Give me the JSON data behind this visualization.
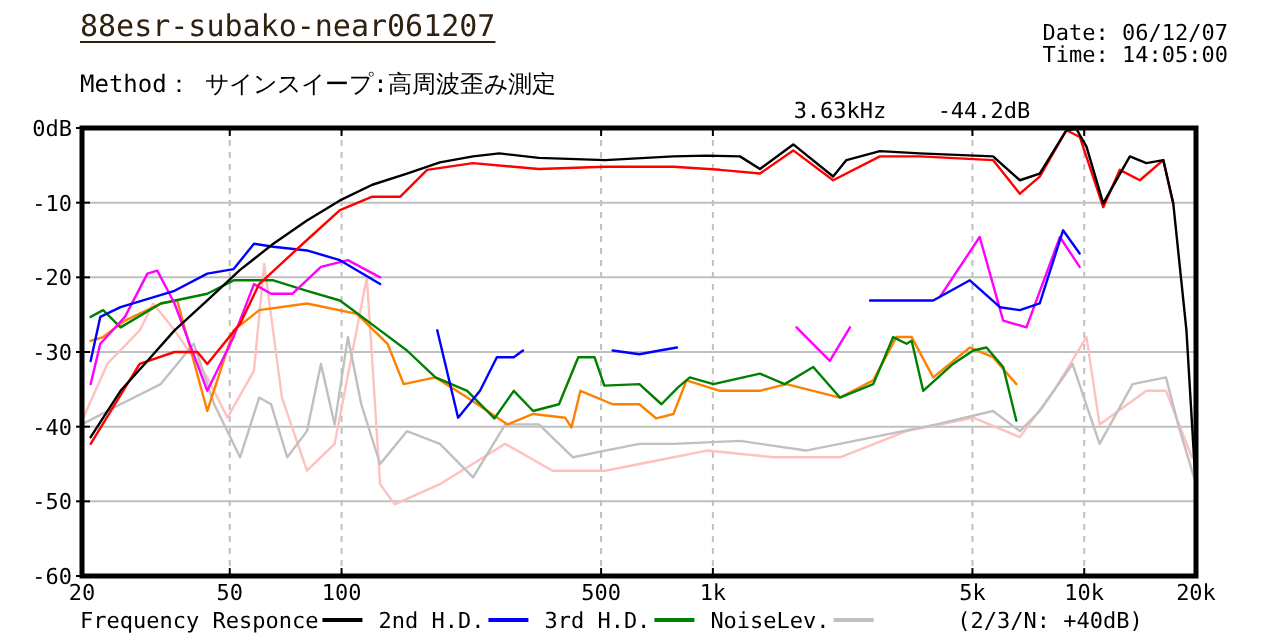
{
  "chart_data": {
    "type": "line",
    "title": "88esr-subako-near061207",
    "subtitle": "Method： サインスイープ:高周波歪み測定",
    "annotations": [
      "Date: 06/12/07",
      "Time: 14:05:00",
      "3.63kHz",
      "-44.2dB",
      "(2/3/N: +40dB)"
    ],
    "log": "x",
    "xlim": [
      20,
      20000
    ],
    "ylim": [
      -60,
      0
    ],
    "xticks": [
      20,
      50,
      100,
      500,
      {
        "value": 1000,
        "label": "1k"
      },
      {
        "value": 5000,
        "label": "5k"
      },
      {
        "value": 10000,
        "label": "10k"
      },
      {
        "value": 20000,
        "label": "20k"
      }
    ],
    "yticks": [
      {
        "value": 0,
        "label": "0dB"
      },
      -10,
      -20,
      -30,
      -40,
      -50,
      -60
    ],
    "grid": true,
    "legend": "bottom",
    "line_style": "solid",
    "marker": "none",
    "series": [
      {
        "color": "#ffc0c0",
        "x": [
          20,
          23.4,
          28.6,
          31.1,
          35.5,
          43.5,
          49.3,
          58.1,
          61.9,
          69.1,
          80.7,
          95.8,
          117,
          127,
          139,
          184,
          276,
          370,
          513,
          783,
          962,
          1460,
          2200,
          3320,
          5024,
          6710,
          8280,
          10140,
          11000,
          14700,
          16600,
          19500
        ],
        "values": [
          -39.2,
          -31.6,
          -27.1,
          -23.5,
          -27.1,
          -33.4,
          -38.8,
          -32.5,
          -18.2,
          -36.1,
          -45.9,
          -42.3,
          -20,
          -47.7,
          -50.4,
          -47.7,
          -42.3,
          -45.9,
          -45.9,
          -44.1,
          -43.2,
          -44.1,
          -44.1,
          -40.6,
          -38.8,
          -41.4,
          -35.2,
          -28,
          -39.7,
          -35.2,
          -35.2,
          -44.1
        ]
      },
      {
        "name": "NoiseLev.",
        "color": "#c0c0c0",
        "x": [
          20,
          25.4,
          32.6,
          40,
          45.4,
          53.3,
          60,
          64.6,
          71.4,
          80.7,
          88,
          95.8,
          104,
          113,
          127,
          150,
          184,
          226,
          276,
          340,
          420,
          513,
          634,
          782,
          1183,
          1780,
          2703,
          4000,
          5681,
          6710,
          7590,
          9300,
          11000,
          13500,
          16600,
          17900,
          20000
        ],
        "values": [
          -39.7,
          -37,
          -34.3,
          -28.9,
          -37,
          -44.1,
          -36.1,
          -37,
          -44.1,
          -40.6,
          -31.6,
          -39.7,
          -28,
          -37,
          -45,
          -40.6,
          -42.3,
          -46.8,
          -39.7,
          -39.7,
          -44.1,
          -43.2,
          -42.3,
          -42.3,
          -41.9,
          -43.2,
          -41.4,
          -39.7,
          -37.9,
          -40.6,
          -37.9,
          -31.6,
          -42.3,
          -34.3,
          -33.4,
          -39.7,
          -47.7
        ]
      },
      {
        "color": "#ff8000",
        "x": [
          21.1,
          22.8,
          26.1,
          32.6,
          36.1,
          43.5,
          51.2,
          60,
          80.7,
          110,
          133,
          147,
          179,
          218,
          280,
          328,
          400,
          416,
          440,
          537,
          634,
          704,
          783,
          849,
          1045,
          1339,
          1577,
          2198,
          2703,
          3120,
          3430,
          3920,
          4920,
          5681,
          6565
        ],
        "values": [
          -28.5,
          -28,
          -25.8,
          -23.5,
          -23.1,
          -37.9,
          -27.1,
          -24.4,
          -23.5,
          -24.9,
          -28.9,
          -34.3,
          -33.4,
          -36.1,
          -39.7,
          -38.3,
          -38.8,
          -40.1,
          -35.2,
          -37,
          -37,
          -38.9,
          -38.3,
          -33.8,
          -35.2,
          -35.2,
          -34.3,
          -36.1,
          -33.8,
          -28,
          -28,
          -33.4,
          -29.4,
          -30.7,
          -34.3
        ]
      },
      {
        "name": "3rd H.D.",
        "color": "#008000",
        "x": [
          21.1,
          22.8,
          25.4,
          32.6,
          43.5,
          51.2,
          65.5,
          80.7,
          99,
          127,
          150,
          179,
          218,
          258,
          291,
          328,
          385,
          434,
          480,
          510,
          634,
          727,
          807,
          867,
          1003,
          1339,
          1561,
          1863,
          2198,
          2703,
          3059,
          3322,
          3430,
          3684,
          4433,
          5024,
          5454,
          6050,
          6565
        ],
        "values": [
          -25.3,
          -24.4,
          -26.7,
          -23.5,
          -22.2,
          -20.4,
          -20.4,
          -21.8,
          -23.1,
          -27.1,
          -29.8,
          -33.4,
          -35.2,
          -38.9,
          -35.2,
          -37.9,
          -37,
          -30.7,
          -30.7,
          -34.5,
          -34.3,
          -37,
          -34.7,
          -33.4,
          -34.3,
          -32.9,
          -34.3,
          -32,
          -36.1,
          -34.3,
          -28,
          -28.9,
          -28.5,
          -35.2,
          -31.6,
          -29.8,
          -29.4,
          -32,
          -39.2
        ]
      },
      {
        "color": "#ff00ff",
        "x": [
          21.1,
          22.4,
          26.1,
          30,
          31.9,
          35.5,
          43.5,
          51.2,
          58.1,
          64.6,
          73.7,
          88,
          104,
          127,
          1300,
          1680,
          2065,
          2340,
          3000,
          4090,
          5230,
          6050,
          6990,
          8600,
          9720
        ],
        "values": [
          -34.3,
          -28.9,
          -25.3,
          -19.5,
          -19.1,
          -23.5,
          -35.2,
          -28,
          -20.9,
          -22.2,
          -22.2,
          -18.6,
          -17.7,
          -20,
          null,
          -26.7,
          -31.2,
          -26.7,
          null,
          -22.6,
          -14.6,
          -25.8,
          -26.7,
          -14.6,
          -18.6
        ]
      },
      {
        "name": "2nd H.D.",
        "color": "#0000ff",
        "x": [
          21.1,
          22.4,
          25.4,
          35.5,
          43.5,
          51.2,
          58.1,
          65.5,
          80.7,
          99,
          127,
          150,
          181,
          206,
          236,
          262,
          291,
          308,
          400,
          537,
          634,
          719,
          800,
          1200,
          2650,
          3920,
          4920,
          5930,
          6710,
          7590,
          8770,
          9720
        ],
        "values": [
          -31.2,
          -25.3,
          -24,
          -21.8,
          -19.5,
          -18.9,
          -15.5,
          -15.9,
          -16.4,
          -17.7,
          -20.9,
          null,
          -27.1,
          -38.8,
          -35.2,
          -30.7,
          -30.7,
          -29.8,
          null,
          -29.8,
          -30.3,
          -29.8,
          -29.4,
          null,
          -23.1,
          -23.1,
          -20.4,
          -24,
          -24.4,
          -23.5,
          -13.7,
          -16.8
        ]
      },
      {
        "color": "#ff0000",
        "x": [
          21.1,
          28.6,
          35.5,
          40.9,
          43.5,
          53.3,
          60,
          80.7,
          99,
          121,
          144,
          170,
          226,
          340,
          513,
          783,
          1045,
          1339,
          1646,
          2108,
          2817,
          3608,
          5681,
          6710,
          7590,
          8955,
          9730,
          11250,
          12470,
          14120,
          16330,
          17370
        ],
        "values": [
          -42.3,
          -31.6,
          -30,
          -30,
          -31.6,
          -26.2,
          -20.9,
          -15,
          -11,
          -9.2,
          -9.2,
          -5.6,
          -4.7,
          -5.5,
          -5.2,
          -5.2,
          -5.6,
          -6.1,
          -3,
          -7,
          -3.8,
          -3.8,
          -4.3,
          -8.8,
          -6.5,
          -0.3,
          -1.2,
          -10.6,
          -5.6,
          -7,
          -4.3,
          -10.1
        ]
      },
      {
        "name": "Frequency Responce",
        "color": "#000000",
        "x": [
          21.1,
          25.4,
          30,
          35.5,
          43.5,
          53.3,
          65.5,
          80.7,
          99,
          121,
          150,
          184,
          226,
          266,
          340,
          513,
          782,
          962,
          1183,
          1339,
          1646,
          2108,
          2289,
          2817,
          3608,
          5681,
          6710,
          7590,
          8955,
          9520,
          10141,
          11250,
          13270,
          14700,
          16330,
          17370,
          18850,
          20000
        ],
        "values": [
          -41.4,
          -35.2,
          -31.2,
          -27.1,
          -23.1,
          -19,
          -15.5,
          -12.4,
          -9.7,
          -7.6,
          -6.1,
          -4.6,
          -3.8,
          -3.4,
          -4,
          -4.3,
          -3.8,
          -3.7,
          -3.8,
          -5.5,
          -2.2,
          -6.5,
          -4.3,
          -3.1,
          -3.4,
          -3.8,
          -7,
          -6.1,
          -0.3,
          -0.1,
          -2.5,
          -10.1,
          -3.8,
          -4.7,
          -4.3,
          -10.1,
          -27.1,
          -48.6
        ]
      }
    ]
  }
}
